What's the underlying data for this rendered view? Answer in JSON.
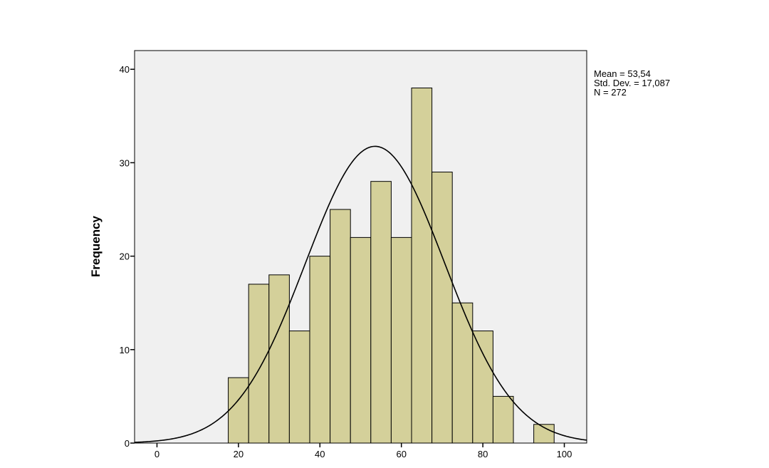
{
  "chart_data": {
    "type": "bar",
    "subtype": "histogram",
    "title": "",
    "xlabel": "",
    "ylabel": "Frequency",
    "xlim": [
      -5.5,
      105.5
    ],
    "ylim": [
      0,
      42
    ],
    "x_ticks": [
      0,
      20,
      40,
      60,
      80,
      100
    ],
    "y_ticks": [
      0,
      10,
      20,
      30,
      40
    ],
    "bin_width": 5,
    "bins": [
      {
        "start": 17.5,
        "end": 22.5,
        "count": 7
      },
      {
        "start": 22.5,
        "end": 27.5,
        "count": 17
      },
      {
        "start": 27.5,
        "end": 32.5,
        "count": 18
      },
      {
        "start": 32.5,
        "end": 37.5,
        "count": 12
      },
      {
        "start": 37.5,
        "end": 42.5,
        "count": 20
      },
      {
        "start": 42.5,
        "end": 47.5,
        "count": 25
      },
      {
        "start": 47.5,
        "end": 52.5,
        "count": 22
      },
      {
        "start": 52.5,
        "end": 57.5,
        "count": 28
      },
      {
        "start": 57.5,
        "end": 62.5,
        "count": 22
      },
      {
        "start": 62.5,
        "end": 67.5,
        "count": 38
      },
      {
        "start": 67.5,
        "end": 72.5,
        "count": 29
      },
      {
        "start": 72.5,
        "end": 77.5,
        "count": 15
      },
      {
        "start": 77.5,
        "end": 82.5,
        "count": 12
      },
      {
        "start": 82.5,
        "end": 87.5,
        "count": 5
      },
      {
        "start": 92.5,
        "end": 97.5,
        "count": 2
      }
    ],
    "normal_curve": {
      "mean": 53.54,
      "std": 17.087,
      "n": 272
    },
    "stats_lines": [
      "Mean = 53,54",
      "Std. Dev. = 17,087",
      "N = 272"
    ],
    "grid": false,
    "legend": "top-right",
    "colors": {
      "bar_fill": "#d4d09a",
      "bar_stroke": "#000000",
      "plot_background": "#f0f0f0",
      "curve": "#000000"
    }
  }
}
